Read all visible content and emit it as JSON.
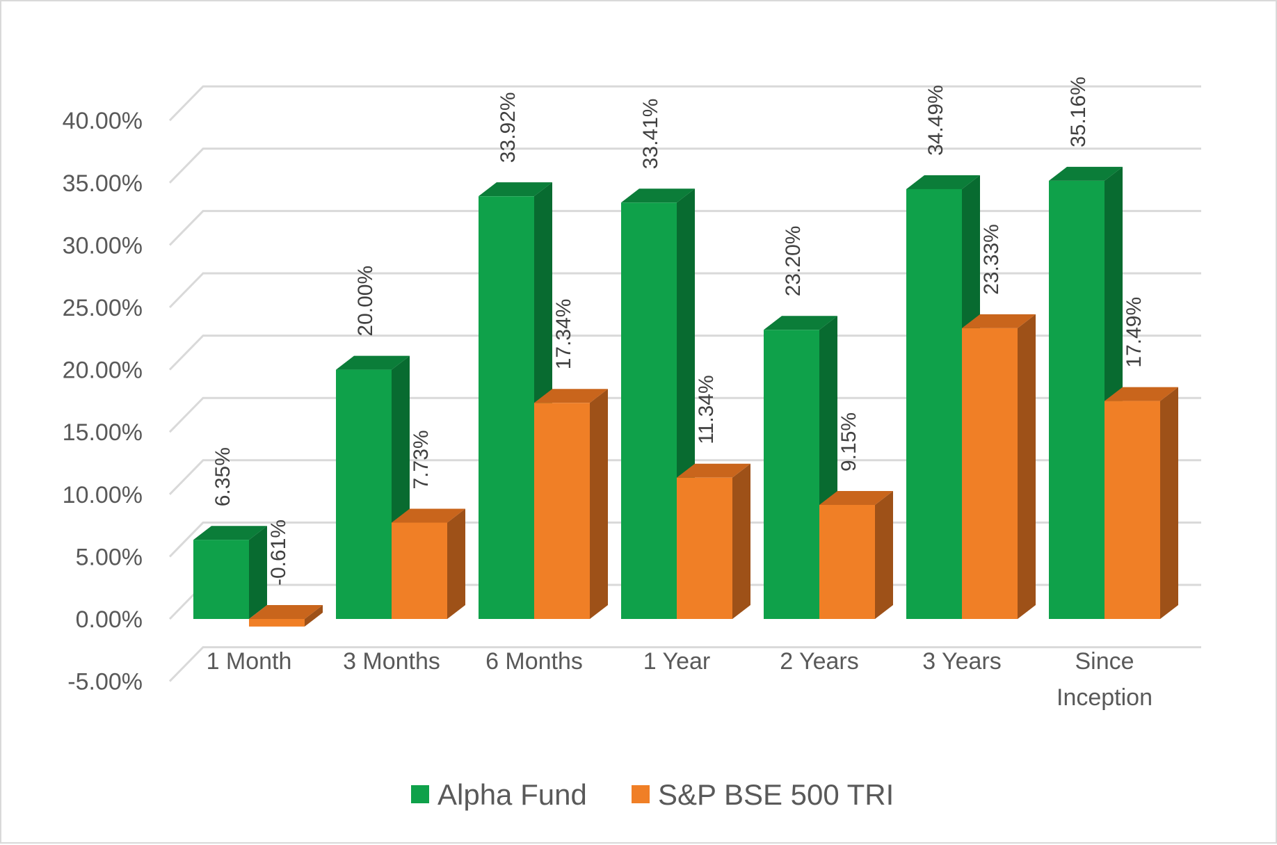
{
  "chart_data": {
    "type": "bar",
    "style": "3d-clustered-column",
    "categories": [
      "1 Month",
      "3 Months",
      "6 Months",
      "1 Year",
      "2 Years",
      "3 Years",
      "Since Inception"
    ],
    "series": [
      {
        "name": "Alpha Fund",
        "values": [
          6.35,
          20.0,
          33.92,
          33.41,
          23.2,
          34.49,
          35.16
        ],
        "labels": [
          "6.35%",
          "20.00%",
          "33.92%",
          "33.41%",
          "23.20%",
          "34.49%",
          "35.16%"
        ],
        "color": "#0fa14a",
        "side_color": "#086b30",
        "top_color": "#0b7d39"
      },
      {
        "name": "S&P BSE 500 TRI",
        "values": [
          -0.61,
          7.73,
          17.34,
          11.34,
          9.15,
          23.33,
          17.49
        ],
        "labels": [
          "-0.61%",
          "7.73%",
          "17.34%",
          "11.34%",
          "9.15%",
          "23.33%",
          "17.49%"
        ],
        "color": "#f07f26",
        "side_color": "#9e5118",
        "top_color": "#c9651c"
      }
    ],
    "y_ticks": [
      -5,
      0,
      5,
      10,
      15,
      20,
      25,
      30,
      35,
      40
    ],
    "y_tick_labels": [
      "-5.00%",
      "0.00%",
      "5.00%",
      "10.00%",
      "15.00%",
      "20.00%",
      "25.00%",
      "30.00%",
      "35.00%",
      "40.00%"
    ],
    "ylim": [
      -5,
      40
    ],
    "grid": true,
    "legend_position": "bottom",
    "title": "",
    "xlabel": "",
    "ylabel": ""
  }
}
